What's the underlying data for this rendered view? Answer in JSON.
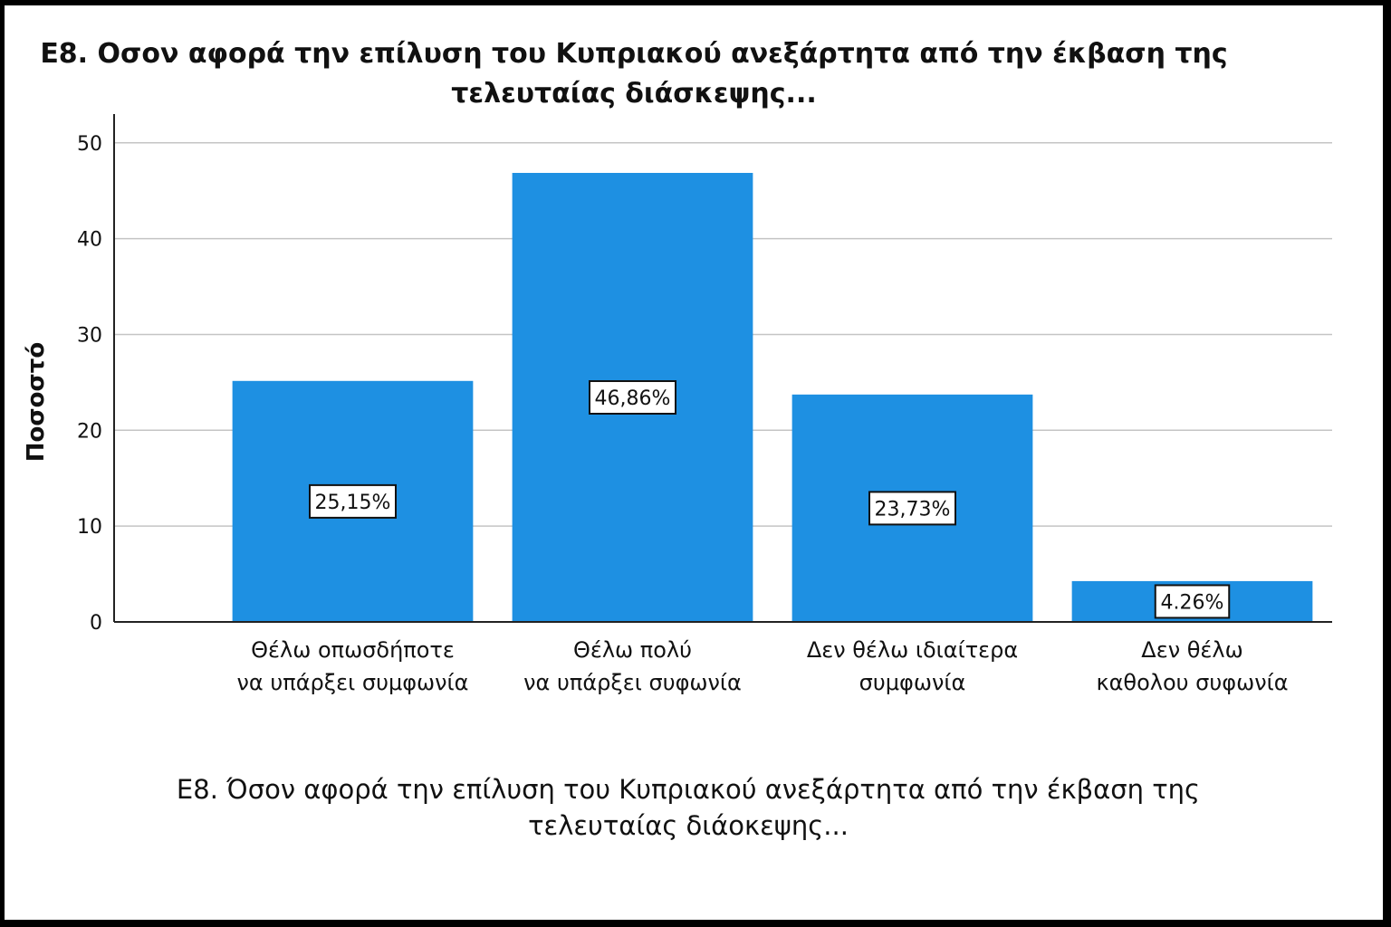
{
  "chart_data": {
    "type": "bar",
    "title_lines": [
      "Ε8. Οσον αφορά την επίλυση του Κυπριακού ανεξάρτητα από την έκβαση της",
      "τελευταίας διάσκεψης..."
    ],
    "ylabel": "Ποσοστό",
    "ylim": [
      0,
      53
    ],
    "yticks": [
      0,
      10,
      20,
      30,
      40,
      50
    ],
    "grid": true,
    "categories": [
      [
        "Θέλω οπωσδήποτε",
        "να υπάρξει συμφωνία"
      ],
      [
        "Θέλω πολύ",
        "να υπάρξει συφωνία"
      ],
      [
        "Δεν θέλω ιδιαίτερα",
        "συμφωνία"
      ],
      [
        "Δεν θέλω",
        "καθολου συφωνία"
      ]
    ],
    "values": [
      25.15,
      46.86,
      23.73,
      4.26
    ],
    "data_labels": [
      "25,15%",
      "46,86%",
      "23,73%",
      "4.26%"
    ],
    "bar_color": "#1e90e2",
    "xlabel_lines": [
      "Ε8. Όσον αφορά την επίλυση του Κυπριακού ανεξάρτητα από την έκβαση της",
      "τελευταίας διάοκεψης..."
    ]
  }
}
